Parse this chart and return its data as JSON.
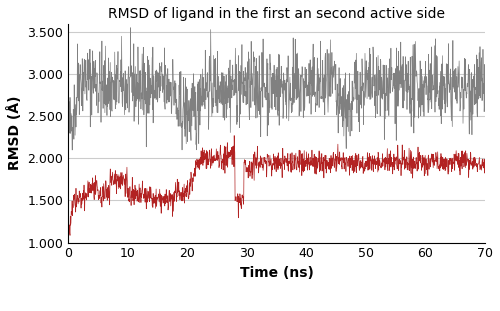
{
  "title": "RMSD of ligand in the first an second active side",
  "xlabel": "Time (ns)",
  "ylabel": "RMSD (Å)",
  "xlim": [
    0,
    70
  ],
  "ylim": [
    1.0,
    3.6
  ],
  "yticks": [
    1.0,
    1.5,
    2.0,
    2.5,
    3.0,
    3.5
  ],
  "ytick_labels": [
    "1.000",
    "1.500",
    "2.000",
    "2.500",
    "3.000",
    "3.500"
  ],
  "xticks": [
    0,
    10,
    20,
    30,
    40,
    50,
    60,
    70
  ],
  "lig1_color": "#b22222",
  "lig2_color": "#808080",
  "seed": 42
}
